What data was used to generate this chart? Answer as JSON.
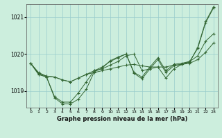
{
  "title": "Graphe pression niveau de la mer (hPa)",
  "bg_color": "#cceedd",
  "grid_color": "#99cccc",
  "line_color": "#336633",
  "xlim": [
    -0.5,
    23.5
  ],
  "ylim": [
    1018.55,
    1021.35
  ],
  "yticks": [
    1019,
    1020,
    1021
  ],
  "xticks": [
    0,
    1,
    2,
    3,
    4,
    5,
    6,
    7,
    8,
    9,
    10,
    11,
    12,
    13,
    14,
    15,
    16,
    17,
    18,
    19,
    20,
    21,
    22,
    23
  ],
  "series": [
    [
      1019.75,
      1019.5,
      1019.4,
      1019.38,
      1019.3,
      1019.25,
      1019.35,
      1019.45,
      1019.5,
      1019.55,
      1019.6,
      1019.65,
      1019.7,
      1019.72,
      1019.68,
      1019.65,
      1019.65,
      1019.65,
      1019.7,
      1019.72,
      1019.75,
      1019.85,
      1020.05,
      1020.3
    ],
    [
      1019.75,
      1019.48,
      1019.4,
      1019.38,
      1019.3,
      1019.25,
      1019.35,
      1019.45,
      1019.55,
      1019.6,
      1019.7,
      1019.8,
      1019.95,
      1020.0,
      1019.55,
      1019.6,
      1019.65,
      1019.35,
      1019.6,
      1019.72,
      1019.8,
      1019.95,
      1020.35,
      1020.55
    ],
    [
      1019.75,
      1019.45,
      1019.38,
      1018.85,
      1018.7,
      1018.7,
      1018.95,
      1019.25,
      1019.55,
      1019.65,
      1019.8,
      1019.9,
      1020.0,
      1019.5,
      1019.38,
      1019.65,
      1019.9,
      1019.55,
      1019.72,
      1019.75,
      1019.8,
      1020.15,
      1020.85,
      1021.25
    ],
    [
      1019.75,
      1019.45,
      1019.38,
      1018.82,
      1018.65,
      1018.65,
      1018.78,
      1019.05,
      1019.52,
      1019.62,
      1019.82,
      1019.92,
      1020.0,
      1019.48,
      1019.33,
      1019.6,
      1019.85,
      1019.5,
      1019.68,
      1019.72,
      1019.78,
      1020.18,
      1020.88,
      1021.28
    ]
  ]
}
